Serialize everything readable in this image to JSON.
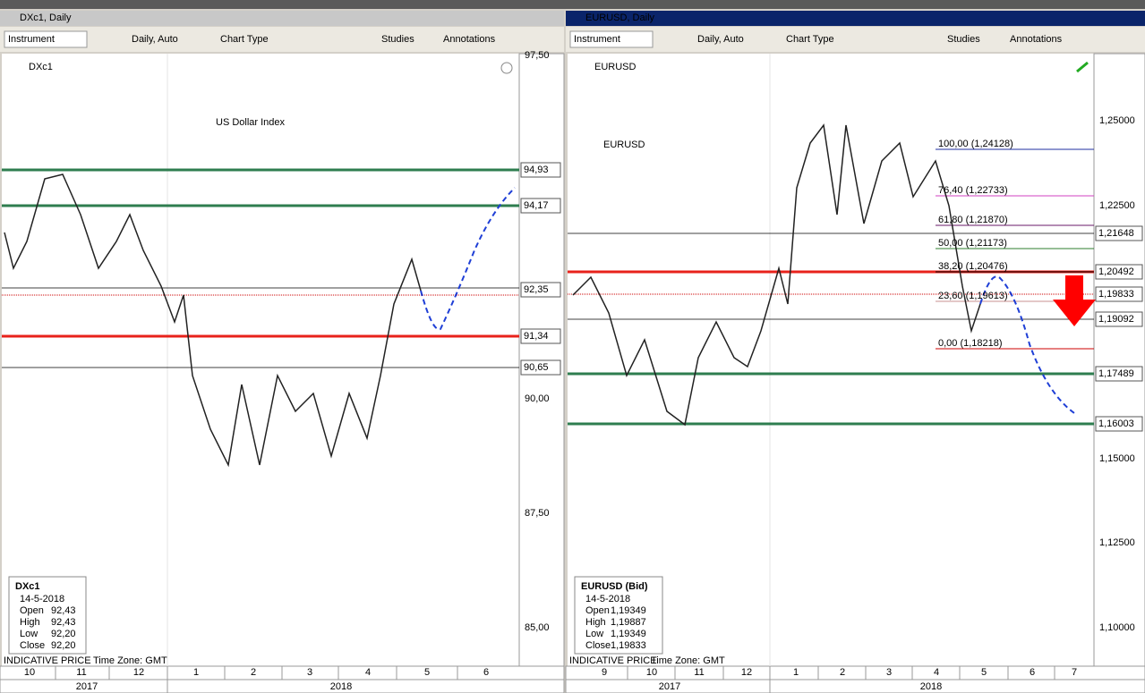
{
  "panels": [
    {
      "title": "DXc1, Daily",
      "toolbar": {
        "instrument": "Instrument",
        "interval": "Daily,  Auto",
        "chart_type": "Chart Type",
        "studies": "Studies",
        "annotations": "Annotations"
      },
      "symbol": "DXc1",
      "annotation": "US Dollar Index",
      "axis_ticks": [
        "97,50",
        "90,00",
        "87,50",
        "85,00"
      ],
      "price_labels": [
        "94,93",
        "94,17",
        "92,35",
        "91,34",
        "90,65"
      ],
      "info": {
        "symbol": "DXc1",
        "date": "14-5-2018",
        "rows": [
          [
            "Open",
            "92,43"
          ],
          [
            "High",
            "92,43"
          ],
          [
            "Low",
            "92,20"
          ],
          [
            "Close",
            "92,20"
          ]
        ]
      },
      "footer": {
        "price_type": "INDICATIVE PRICE",
        "time_zone": "Time Zone: GMT"
      },
      "months": [
        "10",
        "11",
        "12",
        "1",
        "2",
        "3",
        "4",
        "5",
        "6"
      ],
      "years": [
        "2017",
        "2018"
      ]
    },
    {
      "title": "EURUSD, Daily",
      "toolbar": {
        "instrument": "Instrument",
        "interval": "Daily,  Auto",
        "chart_type": "Chart Type",
        "studies": "Studies",
        "annotations": "Annotations"
      },
      "symbol": "EURUSD",
      "annotation": "EURUSD",
      "axis_ticks": [
        "1,25000",
        "1,22500",
        "1,15000",
        "1,12500",
        "1,10000"
      ],
      "price_labels": [
        "1,21648",
        "1,20492",
        "1,19833",
        "1,19092",
        "1,17489",
        "1,16003"
      ],
      "fib_labels": [
        "100,00 (1,24128)",
        "76,40 (1,22733)",
        "61,80 (1,21870)",
        "50,00 (1,21173)",
        "38,20 (1,20476)",
        "23,60 (1,19613)",
        "0,00 (1,18218)"
      ],
      "info": {
        "symbol": "EURUSD (Bid)",
        "date": "14-5-2018",
        "rows": [
          [
            "Open",
            "1,19349"
          ],
          [
            "High",
            "1,19887"
          ],
          [
            "Low",
            "1,19349"
          ],
          [
            "Close",
            "1,19833"
          ]
        ]
      },
      "footer": {
        "price_type": "INDICATIVE PRICE",
        "time_zone": "Time Zone: GMT"
      },
      "months": [
        "9",
        "10",
        "11",
        "12",
        "1",
        "2",
        "3",
        "4",
        "5",
        "6",
        "7"
      ],
      "years": [
        "2017",
        "2018"
      ]
    }
  ]
}
